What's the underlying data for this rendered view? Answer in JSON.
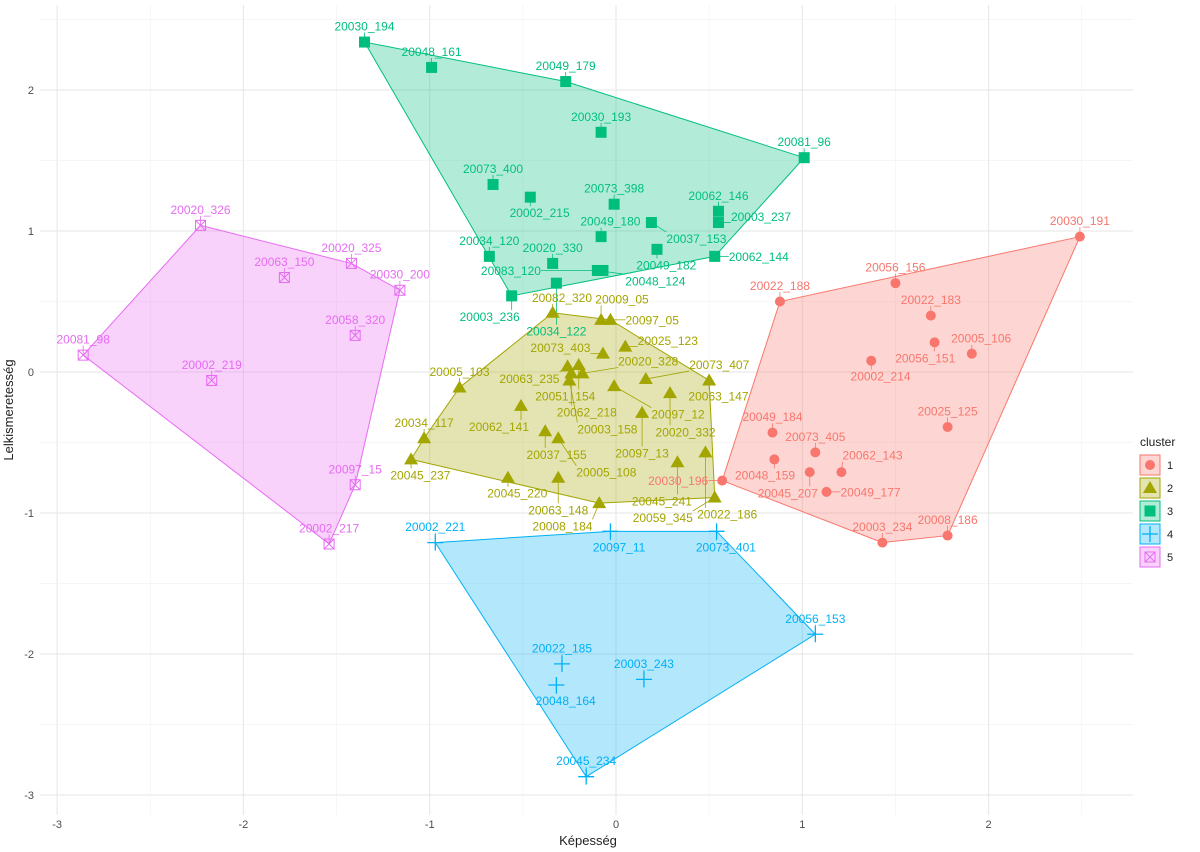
{
  "chart_data": {
    "type": "scatter",
    "title": "",
    "xlabel": "Képesség",
    "ylabel": "Lelkismeretesség",
    "xlim": [
      -3.1,
      2.8
    ],
    "ylim": [
      -3.1,
      2.45
    ],
    "xticks": [
      -3,
      -2,
      -1,
      0,
      1,
      2
    ],
    "yticks": [
      -3,
      -2,
      -1,
      0,
      1,
      2
    ],
    "grid": true,
    "hulls": true,
    "legend": {
      "title": "cluster",
      "placement": "right",
      "entries": [
        "1",
        "2",
        "3",
        "4",
        "5"
      ]
    },
    "colors": {
      "1": "#F8766D",
      "2": "#A3A500",
      "3": "#00BF7D",
      "4": "#00B0F6",
      "5": "#E76BF3"
    },
    "shapes": {
      "1": "circle",
      "2": "triangle",
      "3": "square",
      "4": "plus",
      "5": "boxed-x"
    },
    "points": [
      {
        "label": "20030_191",
        "x": 2.49,
        "y": 0.96,
        "cluster": "1"
      },
      {
        "label": "20056_156",
        "x": 1.5,
        "y": 0.63,
        "cluster": "1"
      },
      {
        "label": "20022_188",
        "x": 0.88,
        "y": 0.5,
        "cluster": "1"
      },
      {
        "label": "20022_183",
        "x": 1.69,
        "y": 0.4,
        "cluster": "1"
      },
      {
        "label": "20056_151",
        "x": 1.71,
        "y": 0.21,
        "cluster": "1"
      },
      {
        "label": "20005_106",
        "x": 1.91,
        "y": 0.13,
        "cluster": "1"
      },
      {
        "label": "20002_214",
        "x": 1.37,
        "y": 0.08,
        "cluster": "1"
      },
      {
        "label": "20025_125",
        "x": 1.78,
        "y": -0.39,
        "cluster": "1"
      },
      {
        "label": "20049_184",
        "x": 0.84,
        "y": -0.43,
        "cluster": "1"
      },
      {
        "label": "20073_405",
        "x": 1.07,
        "y": -0.57,
        "cluster": "1"
      },
      {
        "label": "20048_159",
        "x": 0.85,
        "y": -0.62,
        "cluster": "1"
      },
      {
        "label": "20045_207",
        "x": 1.04,
        "y": -0.71,
        "cluster": "1"
      },
      {
        "label": "20062_143",
        "x": 1.21,
        "y": -0.71,
        "cluster": "1"
      },
      {
        "label": "20049_177",
        "x": 1.13,
        "y": -0.85,
        "cluster": "1"
      },
      {
        "label": "20030_196",
        "x": 0.57,
        "y": -0.77,
        "cluster": "1"
      },
      {
        "label": "20003_234",
        "x": 1.43,
        "y": -1.21,
        "cluster": "1"
      },
      {
        "label": "20008_186",
        "x": 1.78,
        "y": -1.16,
        "cluster": "1"
      },
      {
        "label": "20082_320",
        "x": -0.34,
        "y": 0.42,
        "cluster": "2"
      },
      {
        "label": "20009_05",
        "x": -0.08,
        "y": 0.37,
        "cluster": "2"
      },
      {
        "label": "20097_05",
        "x": -0.03,
        "y": 0.37,
        "cluster": "2"
      },
      {
        "label": "20025_123",
        "x": 0.05,
        "y": 0.18,
        "cluster": "2"
      },
      {
        "label": "20073_403",
        "x": -0.07,
        "y": 0.13,
        "cluster": "2"
      },
      {
        "label": "20063_235",
        "x": -0.26,
        "y": 0.04,
        "cluster": "2"
      },
      {
        "label": "20051_154",
        "x": -0.2,
        "y": 0.05,
        "cluster": "2"
      },
      {
        "label": "20062_218",
        "x": -0.24,
        "y": -0.01,
        "cluster": "2"
      },
      {
        "label": "20020_328",
        "x": -0.18,
        "y": -0.01,
        "cluster": "2"
      },
      {
        "label": "20003_158",
        "x": -0.25,
        "y": -0.06,
        "cluster": "2"
      },
      {
        "label": "20097_12",
        "x": -0.01,
        "y": -0.1,
        "cluster": "2"
      },
      {
        "label": "20073_407",
        "x": 0.16,
        "y": -0.05,
        "cluster": "2"
      },
      {
        "label": "20020_332",
        "x": 0.29,
        "y": -0.15,
        "cluster": "2"
      },
      {
        "label": "20063_147",
        "x": 0.5,
        "y": -0.06,
        "cluster": "2"
      },
      {
        "label": "20005_103",
        "x": -0.84,
        "y": -0.11,
        "cluster": "2"
      },
      {
        "label": "20062_141",
        "x": -0.51,
        "y": -0.24,
        "cluster": "2"
      },
      {
        "label": "20097_13",
        "x": 0.14,
        "y": -0.29,
        "cluster": "2"
      },
      {
        "label": "20037_155",
        "x": -0.38,
        "y": -0.42,
        "cluster": "2"
      },
      {
        "label": "20005_108",
        "x": -0.31,
        "y": -0.47,
        "cluster": "2"
      },
      {
        "label": "20034_117",
        "x": -1.03,
        "y": -0.47,
        "cluster": "2"
      },
      {
        "label": "20045_237",
        "x": -1.1,
        "y": -0.62,
        "cluster": "2"
      },
      {
        "label": "20045_241",
        "x": 0.33,
        "y": -0.64,
        "cluster": "2"
      },
      {
        "label": "20022_186",
        "x": 0.48,
        "y": -0.57,
        "cluster": "2"
      },
      {
        "label": "20045_220",
        "x": -0.58,
        "y": -0.75,
        "cluster": "2"
      },
      {
        "label": "20063_148",
        "x": -0.31,
        "y": -0.75,
        "cluster": "2"
      },
      {
        "label": "20008_184",
        "x": -0.09,
        "y": -0.93,
        "cluster": "2"
      },
      {
        "label": "20059_345",
        "x": 0.53,
        "y": -0.89,
        "cluster": "2"
      },
      {
        "label": "20030_194",
        "x": -1.35,
        "y": 2.34,
        "cluster": "3"
      },
      {
        "label": "20048_161",
        "x": -0.99,
        "y": 2.16,
        "cluster": "3"
      },
      {
        "label": "20049_179",
        "x": -0.27,
        "y": 2.06,
        "cluster": "3"
      },
      {
        "label": "20030_193",
        "x": -0.08,
        "y": 1.7,
        "cluster": "3"
      },
      {
        "label": "20081_96",
        "x": 1.01,
        "y": 1.52,
        "cluster": "3"
      },
      {
        "label": "20073_400",
        "x": -0.66,
        "y": 1.33,
        "cluster": "3"
      },
      {
        "label": "20002_215",
        "x": -0.46,
        "y": 1.24,
        "cluster": "3"
      },
      {
        "label": "20073_398",
        "x": -0.01,
        "y": 1.19,
        "cluster": "3"
      },
      {
        "label": "20062_146",
        "x": 0.55,
        "y": 1.14,
        "cluster": "3"
      },
      {
        "label": "20037_153",
        "x": 0.19,
        "y": 1.06,
        "cluster": "3"
      },
      {
        "label": "20003_237",
        "x": 0.55,
        "y": 1.06,
        "cluster": "3"
      },
      {
        "label": "20049_180",
        "x": -0.08,
        "y": 0.96,
        "cluster": "3"
      },
      {
        "label": "20049_182",
        "x": 0.22,
        "y": 0.87,
        "cluster": "3"
      },
      {
        "label": "20034_120",
        "x": -0.68,
        "y": 0.82,
        "cluster": "3"
      },
      {
        "label": "20062_144",
        "x": 0.53,
        "y": 0.82,
        "cluster": "3"
      },
      {
        "label": "20020_330",
        "x": -0.34,
        "y": 0.77,
        "cluster": "3"
      },
      {
        "label": "20048_124",
        "x": -0.1,
        "y": 0.72,
        "cluster": "3"
      },
      {
        "label": "20083_120",
        "x": -0.07,
        "y": 0.72,
        "cluster": "3"
      },
      {
        "label": "20034_122",
        "x": -0.32,
        "y": 0.63,
        "cluster": "3"
      },
      {
        "label": "20003_236",
        "x": -0.56,
        "y": 0.54,
        "cluster": "3"
      },
      {
        "label": "20002_221",
        "x": -0.97,
        "y": -1.21,
        "cluster": "4"
      },
      {
        "label": "20097_11",
        "x": -0.03,
        "y": -1.13,
        "cluster": "4"
      },
      {
        "label": "20073_401",
        "x": 0.54,
        "y": -1.13,
        "cluster": "4"
      },
      {
        "label": "20056_153",
        "x": 1.07,
        "y": -1.86,
        "cluster": "4"
      },
      {
        "label": "20022_185",
        "x": -0.29,
        "y": -2.07,
        "cluster": "4"
      },
      {
        "label": "20048_164",
        "x": -0.32,
        "y": -2.22,
        "cluster": "4"
      },
      {
        "label": "20003_243",
        "x": 0.15,
        "y": -2.18,
        "cluster": "4"
      },
      {
        "label": "20045_234",
        "x": -0.16,
        "y": -2.87,
        "cluster": "4"
      },
      {
        "label": "20020_326",
        "x": -2.23,
        "y": 1.04,
        "cluster": "5"
      },
      {
        "label": "20063_150",
        "x": -1.78,
        "y": 0.67,
        "cluster": "5"
      },
      {
        "label": "20020_325",
        "x": -1.42,
        "y": 0.77,
        "cluster": "5"
      },
      {
        "label": "20030_200",
        "x": -1.16,
        "y": 0.58,
        "cluster": "5"
      },
      {
        "label": "20058_320",
        "x": -1.4,
        "y": 0.26,
        "cluster": "5"
      },
      {
        "label": "20081_98",
        "x": -2.86,
        "y": 0.12,
        "cluster": "5"
      },
      {
        "label": "20002_219",
        "x": -2.17,
        "y": -0.06,
        "cluster": "5"
      },
      {
        "label": "20097_15",
        "x": -1.4,
        "y": -0.8,
        "cluster": "5"
      },
      {
        "label": "20002_217",
        "x": -1.54,
        "y": -1.22,
        "cluster": "5"
      }
    ]
  }
}
